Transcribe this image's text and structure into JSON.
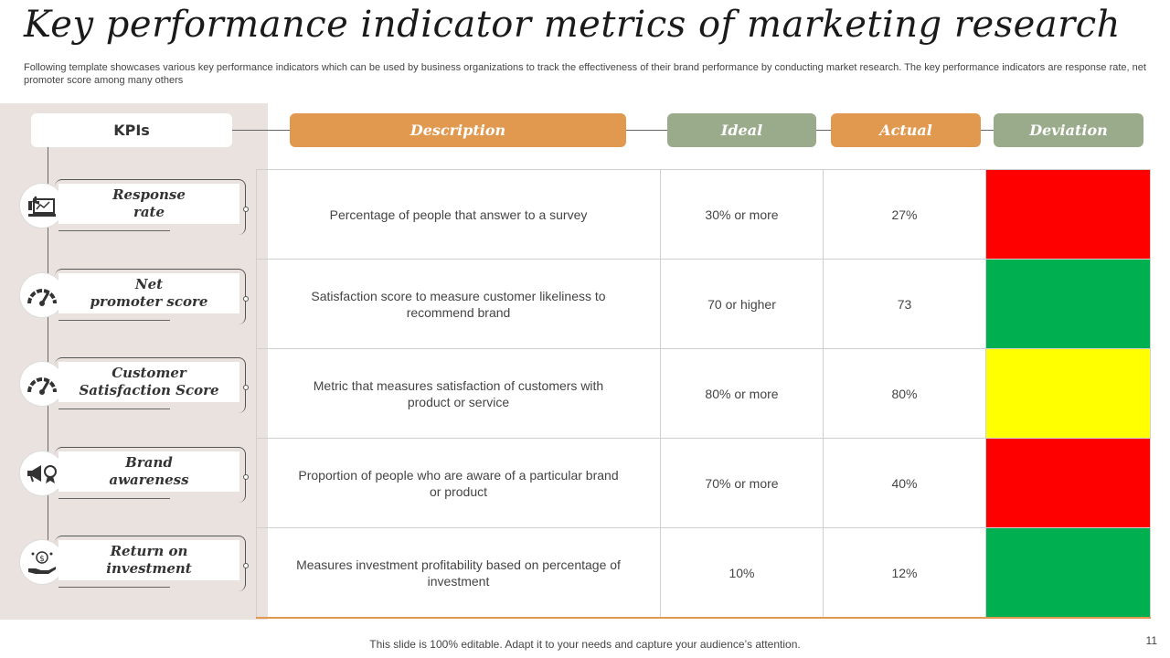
{
  "title": "Key performance indicator metrics of marketing research",
  "subtitle": "Following template showcases various key performance indicators which can be used by business organizations to track the effectiveness of their brand performance by conducting market research. The key performance indicators are response rate, net promoter score among many others",
  "headers": {
    "kpis": "KPIs",
    "description": "Description",
    "ideal": "Ideal",
    "actual": "Actual",
    "deviation": "Deviation"
  },
  "colors": {
    "orange": "#e0994f",
    "sage": "#9aab8c",
    "panel": "#e9e2de",
    "red": "#ff0000",
    "green": "#00b050",
    "yellow": "#ffff00"
  },
  "rows": [
    {
      "kpi_line1": "Response",
      "kpi_line2": "rate",
      "icon": "thumbs-up-chart-icon",
      "description": "Percentage of people that answer to a survey",
      "ideal": "30% or more",
      "actual": "27%",
      "deviation_color": "#ff0000"
    },
    {
      "kpi_line1": "Net",
      "kpi_line2": "promoter score",
      "icon": "gauge-icon",
      "description": "Satisfaction score to measure customer likeliness to recommend brand",
      "ideal": "70 or higher",
      "actual": "73",
      "deviation_color": "#00b050"
    },
    {
      "kpi_line1": "Customer",
      "kpi_line2": "Satisfaction Score",
      "icon": "gauge-icon",
      "description": "Metric that measures satisfaction of customers with product or service",
      "ideal": "80% or more",
      "actual": "80%",
      "deviation_color": "#ffff00"
    },
    {
      "kpi_line1": "Brand",
      "kpi_line2": "awareness",
      "icon": "megaphone-badge-icon",
      "description": "Proportion of people who are aware of a particular brand or product",
      "ideal": "70% or more",
      "actual": "40%",
      "deviation_color": "#ff0000"
    },
    {
      "kpi_line1": "Return on",
      "kpi_line2": "investment",
      "icon": "money-hand-icon",
      "description": "Measures investment profitability based on percentage of investment",
      "ideal": "10%",
      "actual": "12%",
      "deviation_color": "#00b050"
    }
  ],
  "footer": "This slide is 100% editable. Adapt it to your needs and capture your audience’s attention.",
  "page_number": "11"
}
